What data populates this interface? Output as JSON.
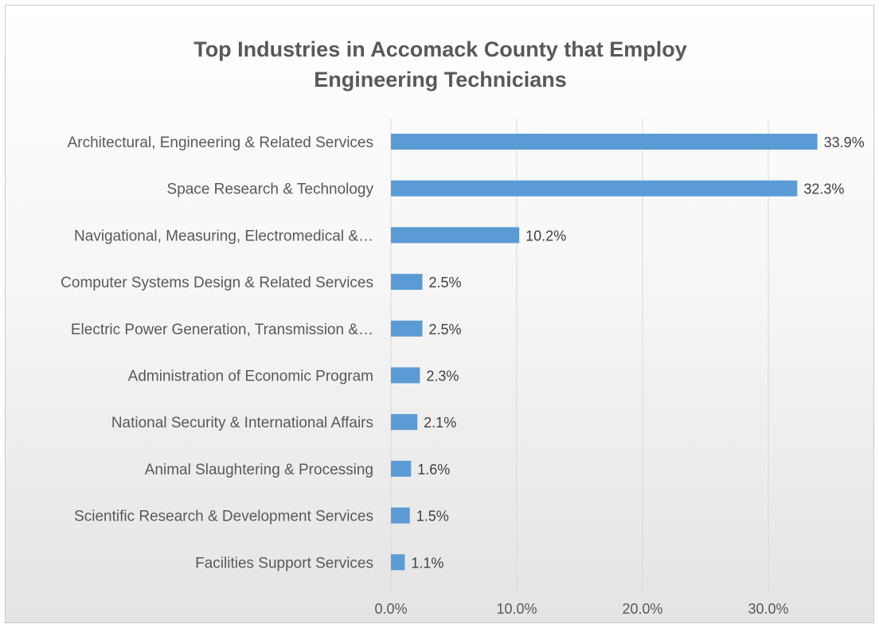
{
  "chart_data": {
    "type": "bar",
    "orientation": "horizontal",
    "title_lines": [
      "Top Industries in Accomack County that Employ",
      "Engineering Technicians"
    ],
    "categories": [
      "Architectural, Engineering & Related Services",
      "Space Research & Technology",
      "Navigational, Measuring, Electromedical &…",
      "Computer Systems Design & Related Services",
      "Electric Power Generation, Transmission &…",
      "Administration of Economic Program",
      "National Security & International Affairs",
      "Animal Slaughtering & Processing",
      "Scientific Research & Development Services",
      "Facilities Support Services"
    ],
    "values": [
      33.9,
      32.3,
      10.2,
      2.5,
      2.5,
      2.3,
      2.1,
      1.6,
      1.5,
      1.1
    ],
    "value_labels": [
      "33.9%",
      "32.3%",
      "10.2%",
      "2.5%",
      "2.5%",
      "2.3%",
      "2.1%",
      "1.6%",
      "1.5%",
      "1.1%"
    ],
    "xlim": [
      0,
      38
    ],
    "x_ticks": [
      0,
      10,
      20,
      30
    ],
    "x_tick_labels": [
      "0.0%",
      "10.0%",
      "20.0%",
      "30.0%"
    ],
    "grid": "vertical",
    "legend": "none",
    "bar_color": "#5b9bd5",
    "gridline_color": "#d9d9d9"
  }
}
